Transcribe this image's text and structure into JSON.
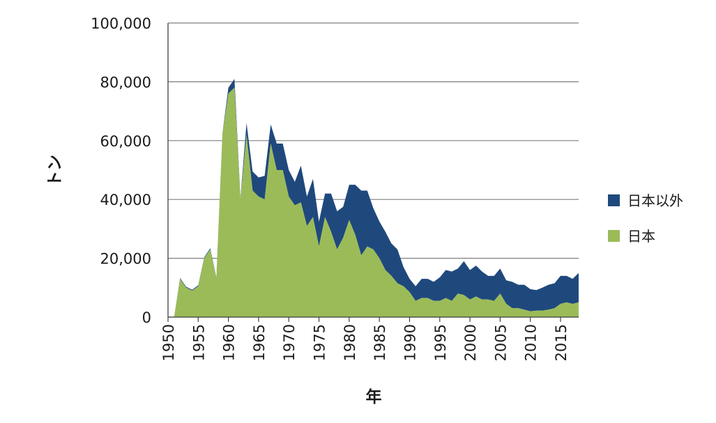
{
  "chart_data": {
    "type": "area",
    "stacked": true,
    "title": "",
    "xlabel": "年",
    "ylabel": "トン",
    "xlim": [
      1950,
      2018
    ],
    "ylim": [
      0,
      100000
    ],
    "x_ticks": [
      1950,
      1955,
      1960,
      1965,
      1970,
      1975,
      1980,
      1985,
      1990,
      1995,
      2000,
      2005,
      2010,
      2015
    ],
    "y_ticks": [
      0,
      20000,
      40000,
      60000,
      80000,
      100000
    ],
    "y_tick_labels": [
      "0",
      "20,000",
      "40,000",
      "60,000",
      "80,000",
      "100,000"
    ],
    "grid": "horizontal",
    "legend_position": "right",
    "colors": {
      "japan": "#9bbb59",
      "other": "#1f497d",
      "grid": "#7f7f7f"
    },
    "x": [
      1951,
      1952,
      1953,
      1954,
      1955,
      1956,
      1957,
      1958,
      1959,
      1960,
      1961,
      1962,
      1963,
      1964,
      1965,
      1966,
      1967,
      1968,
      1969,
      1970,
      1971,
      1972,
      1973,
      1974,
      1975,
      1976,
      1977,
      1978,
      1979,
      1980,
      1981,
      1982,
      1983,
      1984,
      1985,
      1986,
      1987,
      1988,
      1989,
      1990,
      1991,
      1992,
      1993,
      1994,
      1995,
      1996,
      1997,
      1998,
      1999,
      2000,
      2001,
      2002,
      2003,
      2004,
      2005,
      2006,
      2007,
      2008,
      2009,
      2010,
      2011,
      2012,
      2013,
      2014,
      2015,
      2016,
      2017,
      2018
    ],
    "series": [
      {
        "name": "日本",
        "values": [
          0,
          13000,
          10000,
          9000,
          10500,
          20000,
          23000,
          13000,
          62000,
          76000,
          78000,
          40000,
          62000,
          43000,
          41000,
          40000,
          59000,
          50000,
          50000,
          41000,
          38000,
          39000,
          31000,
          34000,
          24000,
          34000,
          29000,
          23000,
          27000,
          33000,
          28000,
          21000,
          24000,
          23000,
          20000,
          16000,
          14000,
          11500,
          10500,
          8500,
          5500,
          6500,
          6500,
          5500,
          5500,
          6500,
          5500,
          8000,
          7500,
          6000,
          7000,
          6000,
          6000,
          5500,
          8000,
          4500,
          3000,
          3000,
          2500,
          2000,
          2200,
          2200,
          2500,
          3000,
          4500,
          5000,
          4500,
          5000
        ]
      },
      {
        "name": "日本以外",
        "values": [
          0,
          300,
          300,
          300,
          300,
          300,
          400,
          400,
          300,
          2000,
          3000,
          500,
          4000,
          6500,
          6500,
          8000,
          6500,
          9000,
          9000,
          9000,
          8000,
          12500,
          10000,
          13000,
          8500,
          8000,
          13000,
          13000,
          10500,
          12000,
          17000,
          22000,
          19000,
          14000,
          12500,
          13000,
          11000,
          11500,
          6500,
          4500,
          5000,
          6500,
          6500,
          6500,
          8000,
          9500,
          10000,
          8500,
          11500,
          10000,
          10500,
          9500,
          8000,
          8500,
          8500,
          8000,
          9000,
          8000,
          8500,
          7500,
          7000,
          7800,
          8500,
          8500,
          9500,
          9000,
          8500,
          10000
        ]
      }
    ]
  }
}
